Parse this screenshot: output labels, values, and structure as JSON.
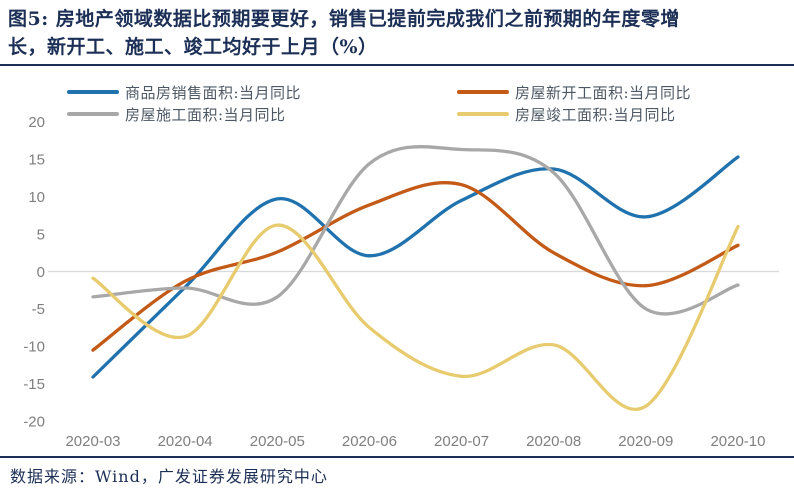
{
  "figure": {
    "title_line1": "图5: 房地产领域数据比预期要更好，销售已提前完成我们之前预期的年度零增",
    "title_line2": "长，新开工、施工、竣工均好于上月（%）",
    "source": "数据来源：Wind，广发证券发展研究中心"
  },
  "colors": {
    "title_navy": "#1c2f56",
    "axis_label_gray": "#7f7f7f",
    "zero_line_gray": "#d9d9d9"
  },
  "chart_data": {
    "type": "line",
    "categories": [
      "2020-03",
      "2020-04",
      "2020-05",
      "2020-06",
      "2020-07",
      "2020-08",
      "2020-09",
      "2020-10"
    ],
    "series": [
      {
        "name": "商品房销售面积:当月同比",
        "color": "#1f72ae",
        "values": [
          -14.1,
          -2.1,
          9.7,
          2.1,
          9.5,
          13.7,
          7.3,
          15.3
        ]
      },
      {
        "name": "房屋新开工面积:当月同比",
        "color": "#c35a17",
        "values": [
          -10.5,
          -1.3,
          2.6,
          8.9,
          11.6,
          2.5,
          -1.9,
          3.5
        ]
      },
      {
        "name": "房屋施工面积:当月同比",
        "color": "#a8a8a8",
        "values": [
          -3.4,
          -2.2,
          -3.4,
          14.4,
          16.3,
          13.2,
          -5.0,
          -1.8
        ]
      },
      {
        "name": "房屋竣工面积:当月同比",
        "color": "#e7cb6e",
        "values": [
          -0.9,
          -8.7,
          6.2,
          -7.5,
          -14.0,
          -9.8,
          -18.0,
          6.0
        ]
      }
    ],
    "ylim": [
      -20,
      20
    ],
    "yticks": [
      20,
      15,
      10,
      5,
      0,
      -5,
      -10,
      -15,
      -20
    ],
    "xlabel": "",
    "ylabel": "",
    "grid": false,
    "legend_position": "top",
    "line_smoothing": true
  }
}
